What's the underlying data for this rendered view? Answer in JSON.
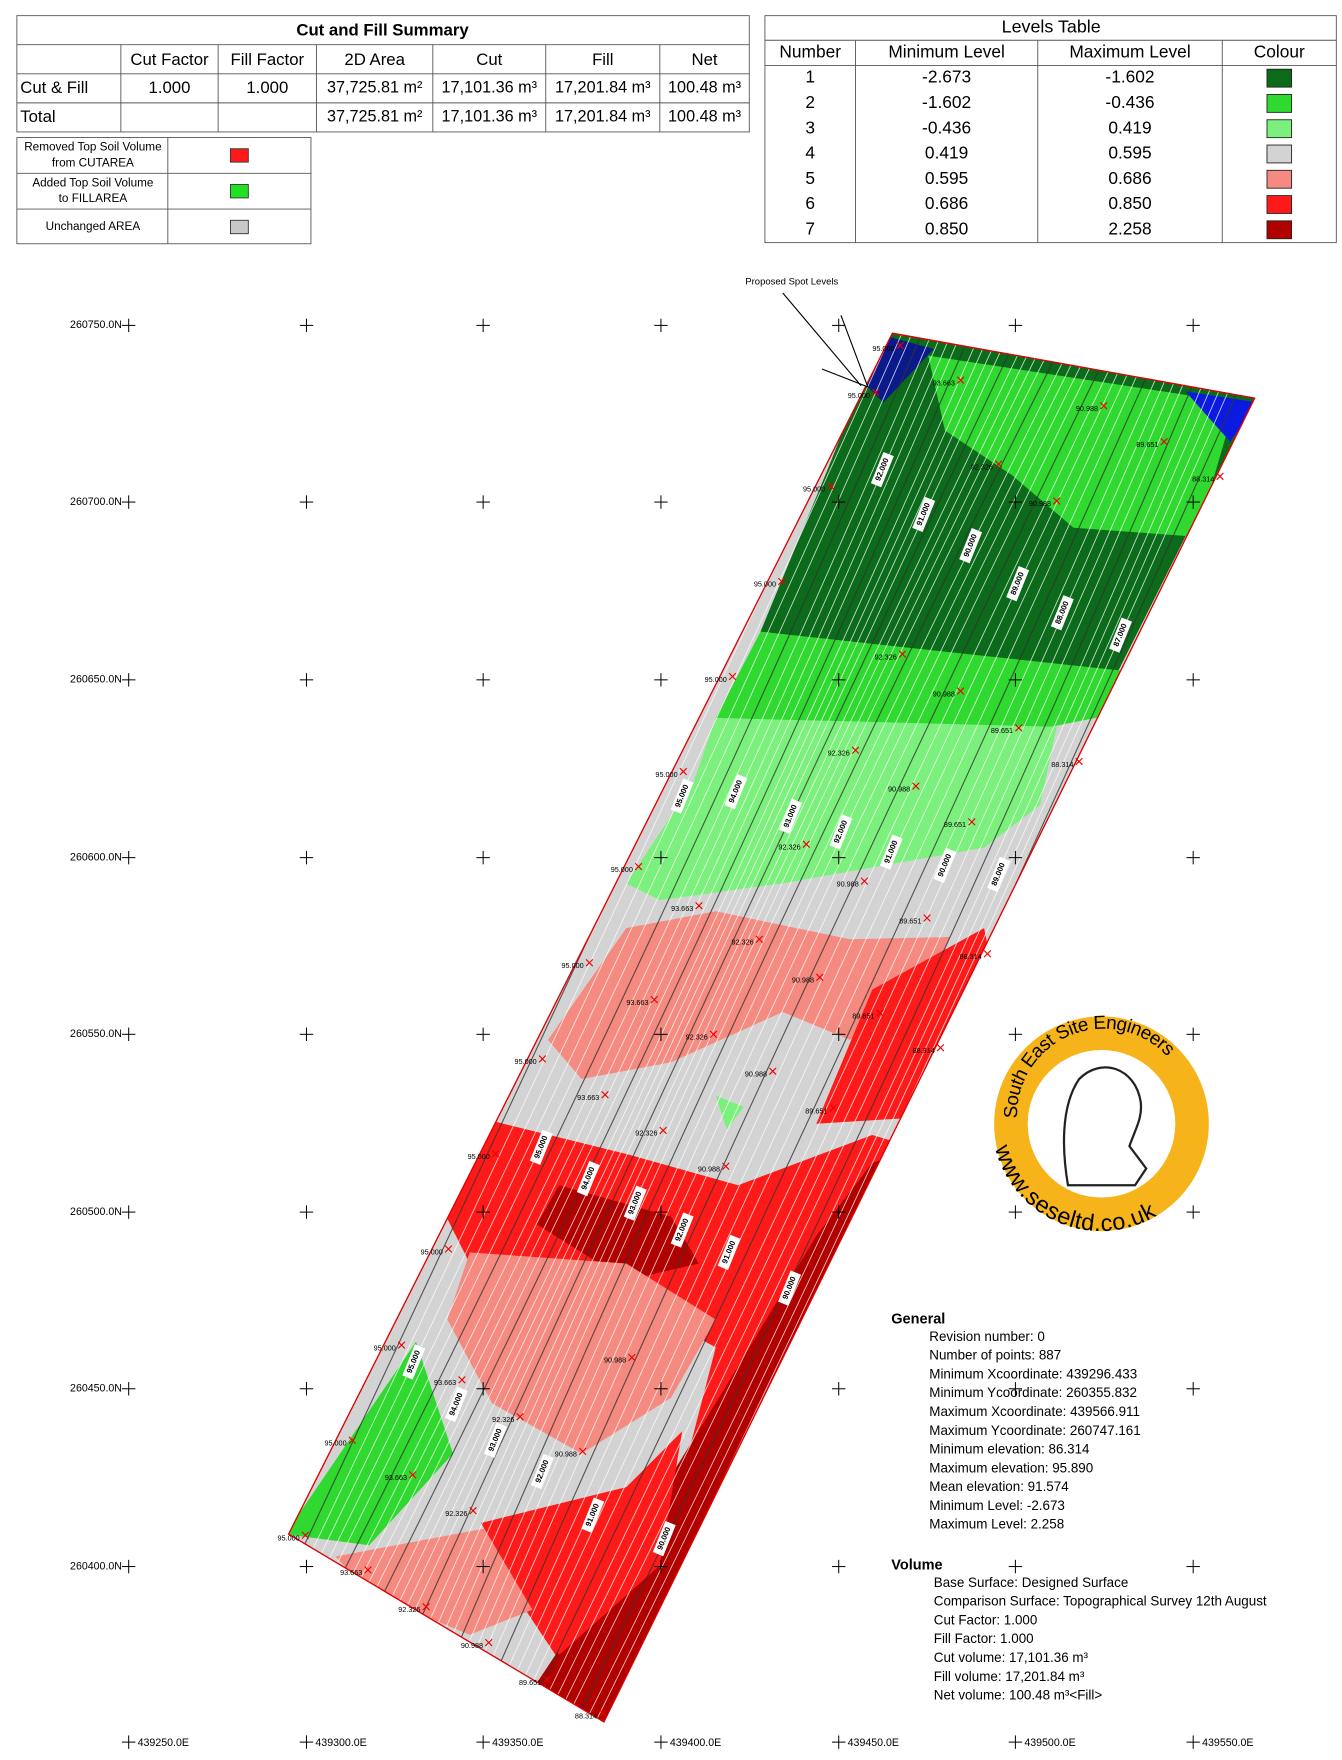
{
  "cut_fill_summary": {
    "title": "Cut and Fill Summary",
    "headers": [
      "Cut Factor",
      "Fill Factor",
      "2D Area",
      "Cut",
      "Fill",
      "Net"
    ],
    "rows": [
      {
        "label": "Cut & Fill",
        "cut_factor": "1.000",
        "fill_factor": "1.000",
        "area": "37,725.81 m²",
        "cut": "17,101.36 m³",
        "fill": "17,201.84 m³",
        "net": "100.48 m³"
      },
      {
        "label": "Total",
        "area": "37,725.81 m²",
        "cut": "17,101.36 m³",
        "fill": "17,201.84 m³",
        "net": "100.48 m³"
      }
    ]
  },
  "legend": [
    {
      "label": "Removed Top Soil Volume from CUTAREA",
      "color": "#ff1a1a"
    },
    {
      "label": "Added Top Soil Volume to FILLAREA",
      "color": "#22e022"
    },
    {
      "label": "Unchanged AREA",
      "color": "#c8c8c8"
    }
  ],
  "levels_table": {
    "title": "Levels Table",
    "headers": [
      "Number",
      "Minimum Level",
      "Maximum Level",
      "Colour"
    ],
    "rows": [
      {
        "number": "1",
        "min": "-2.673",
        "max": "-1.602",
        "color": "#0b6b1a"
      },
      {
        "number": "2",
        "min": "-1.602",
        "max": "-0.436",
        "color": "#2fd92f"
      },
      {
        "number": "3",
        "min": "-0.436",
        "max": "0.419",
        "color": "#7cf07c"
      },
      {
        "number": "4",
        "min": "0.419",
        "max": "0.595",
        "color": "#d3d3d3"
      },
      {
        "number": "5",
        "min": "0.595",
        "max": "0.686",
        "color": "#f58a80"
      },
      {
        "number": "6",
        "min": "0.686",
        "max": "0.850",
        "color": "#ff1a1a"
      },
      {
        "number": "7",
        "min": "0.850",
        "max": "2.258",
        "color": "#b00000"
      }
    ]
  },
  "annotation": "Proposed Spot Levels",
  "northings": [
    "260750.0N",
    "260700.0N",
    "260650.0N",
    "260600.0N",
    "260550.0N",
    "260500.0N",
    "260450.0N",
    "260400.0N"
  ],
  "eastings": [
    "439250.0E",
    "439300.0E",
    "439350.0E",
    "439400.0E",
    "439450.0E",
    "439500.0E",
    "439550.0E"
  ],
  "spot_levels": [
    "95.000",
    "95.000",
    "95.000",
    "95.000",
    "95.000",
    "95.000",
    "95.000",
    "95.000",
    "95.000",
    "95.000",
    "95.000",
    "95.000",
    "95.000",
    "95.000",
    "93.663",
    "93.663",
    "93.663",
    "93.663",
    "93.663",
    "93.663",
    "93.663",
    "92.326",
    "92.326",
    "92.326",
    "92.326",
    "92.326",
    "92.326",
    "92.326",
    "92.326",
    "92.326",
    "92.326",
    "90.988",
    "90.988",
    "90.988",
    "90.988",
    "90.988",
    "90.988",
    "90.988",
    "90.988",
    "90.988",
    "90.988",
    "90.988",
    "89.651",
    "89.651",
    "89.651",
    "89.651",
    "89.651",
    "89.651",
    "89.651",
    "88.314",
    "88.314",
    "88.314",
    "88.314",
    "88.314"
  ],
  "contour_labels": [
    "92.000",
    "91.000",
    "90.000",
    "89.000",
    "88.000",
    "87.000",
    "95.000",
    "94.000",
    "93.000",
    "92.000",
    "91.000",
    "90.000",
    "89.000",
    "95.000",
    "94.000",
    "93.000",
    "92.000",
    "91.000",
    "90.000",
    "95.000",
    "94.000",
    "93.000",
    "92.000",
    "91.000",
    "90.000"
  ],
  "logo": {
    "name": "South East Site Engineers",
    "url": "www.seseltd.co.uk"
  },
  "general": {
    "heading": "General",
    "lines": [
      "Revision number: 0",
      "Number of points: 887",
      "Minimum Xcoordinate: 439296.433",
      "Minimum Ycoordinate: 260355.832",
      "Maximum Xcoordinate: 439566.911",
      "Maximum Ycoordinate: 260747.161",
      "Minimum elevation: 86.314",
      "Maximum elevation: 95.890",
      "Mean elevation: 91.574",
      "Minimum Level: -2.673",
      "Maximum Level: 2.258"
    ]
  },
  "volume": {
    "heading": "Volume",
    "lines": [
      "Base Surface: Designed Surface",
      "Comparison Surface: Topographical Survey 12th August",
      "Cut Factor: 1.000",
      "Fill Factor: 1.000",
      "Cut volume: 17,101.36 m³",
      "Fill volume: 17,201.84 m³",
      "Net volume: 100.48 m³<Fill>"
    ]
  }
}
